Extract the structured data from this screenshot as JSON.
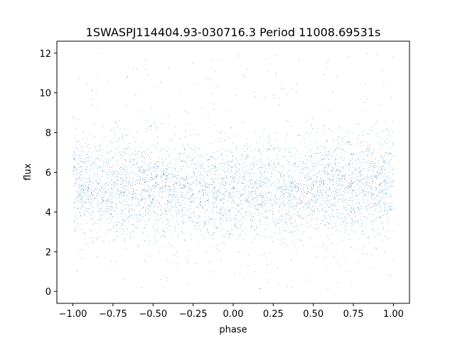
{
  "chart_data": {
    "type": "scatter",
    "title": "1SWASPJ114404.93-030716.3 Period 11008.69531s",
    "xlabel": "phase",
    "ylabel": "flux",
    "xlim": [
      -1.1,
      1.1
    ],
    "ylim": [
      -0.6,
      12.6
    ],
    "x_ticks": [
      -1.0,
      -0.75,
      -0.5,
      -0.25,
      0.0,
      0.25,
      0.5,
      0.75,
      1.0
    ],
    "x_tick_labels": [
      "−1.00",
      "−0.75",
      "−0.50",
      "−0.25",
      "0.00",
      "0.25",
      "0.50",
      "0.75",
      "1.00"
    ],
    "y_ticks": [
      0,
      2,
      4,
      6,
      8,
      10,
      12
    ],
    "y_tick_labels": [
      "0",
      "2",
      "4",
      "6",
      "8",
      "10",
      "12"
    ],
    "grid": false,
    "marker_color": "#1f77b4",
    "series": [
      {
        "x_range": [
          -1.0,
          1.0
        ],
        "y_range": [
          0.0,
          12.0
        ],
        "profile_phase": [
          -1.0,
          -0.75,
          -0.5,
          -0.25,
          0.0,
          0.25,
          0.5,
          0.75,
          1.0
        ],
        "profile_median_flux": [
          5.2,
          5.3,
          5.2,
          5.1,
          5.0,
          5.1,
          5.2,
          5.3,
          5.2
        ],
        "profile_flux_spread": [
          1.2,
          1.3,
          1.2,
          1.2,
          1.2,
          1.2,
          1.2,
          1.3,
          1.2
        ]
      }
    ]
  }
}
